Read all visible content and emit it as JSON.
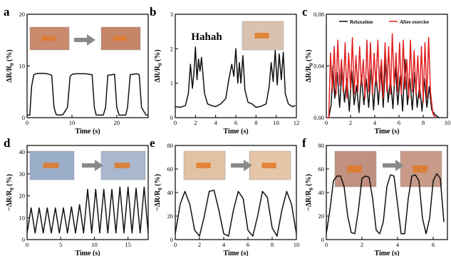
{
  "panel_labels": [
    "a",
    "b",
    "c",
    "d",
    "e",
    "f"
  ],
  "arrow_icon": "right-arrow-icon",
  "colors": {
    "black": "#111111",
    "red": "#e02020",
    "arrow": "#8a8a8a"
  },
  "chart_data": [
    {
      "id": "a",
      "type": "line",
      "xlabel": "Time (s)",
      "ylabel": "ΔR/R0 (%)",
      "xlim": [
        0,
        27
      ],
      "ylim": [
        0,
        20
      ],
      "xticks": [
        0,
        10,
        20
      ],
      "yticks": [
        0,
        10,
        20
      ],
      "series": [
        {
          "color": "#111111",
          "x": [
            0,
            0.6,
            1.0,
            1.5,
            2.0,
            3.0,
            4.5,
            5.5,
            6.0,
            6.5,
            7.0,
            7.3,
            8.0,
            9.0,
            9.6,
            10.1,
            11.0,
            13.0,
            14.5,
            15.0,
            15.4,
            16.1,
            17.0,
            17.5,
            18.0,
            19.5,
            20.0,
            20.5,
            21.2,
            22.0,
            22.4,
            23.0,
            24.5,
            25.0,
            25.5,
            26.5,
            27
          ],
          "y": [
            0.5,
            0.5,
            6,
            8.3,
            8.5,
            8.6,
            8.5,
            8.2,
            2,
            0.6,
            0.5,
            0.5,
            0.6,
            2,
            8,
            8.4,
            8.5,
            8.5,
            8.3,
            2,
            0.5,
            0.5,
            0.5,
            2,
            8.2,
            8.4,
            2,
            0.5,
            0.5,
            0.5,
            2,
            8.3,
            8.5,
            8.3,
            2,
            0.5,
            0.5
          ]
        }
      ],
      "images": [
        {
          "name": "forehead-sensor-relaxed-photo"
        },
        {
          "name": "forehead-sensor-frown-photo"
        }
      ]
    },
    {
      "id": "b",
      "type": "line",
      "xlabel": "Time (s)",
      "ylabel": "ΔR/R0 (%)",
      "xlim": [
        0,
        12
      ],
      "ylim": [
        0,
        3
      ],
      "xticks": [
        0,
        2,
        4,
        6,
        8,
        10,
        12
      ],
      "yticks": [
        0,
        1,
        2,
        3
      ],
      "annotation": "Hahah",
      "series": [
        {
          "color": "#111111",
          "x": [
            0,
            0.5,
            1.0,
            1.3,
            1.5,
            1.7,
            1.85,
            2.0,
            2.15,
            2.3,
            2.45,
            2.6,
            2.9,
            3.2,
            3.6,
            4.0,
            4.5,
            5.0,
            5.3,
            5.6,
            5.8,
            6.0,
            6.2,
            6.35,
            6.5,
            6.7,
            6.9,
            7.2,
            7.6,
            8.0,
            8.5,
            9.0,
            9.3,
            9.5,
            9.7,
            9.9,
            10.1,
            10.3,
            10.5,
            10.7,
            10.9,
            11.2,
            11.6,
            11.9
          ],
          "y": [
            0.32,
            0.3,
            0.35,
            0.7,
            1.55,
            0.85,
            1.3,
            2.05,
            1.1,
            1.7,
            1.35,
            1.75,
            0.7,
            0.4,
            0.35,
            0.32,
            0.4,
            0.55,
            1.1,
            1.55,
            1.2,
            2.0,
            1.0,
            1.6,
            1.0,
            1.8,
            0.8,
            0.45,
            0.4,
            0.3,
            0.33,
            0.4,
            0.9,
            1.6,
            1.05,
            1.95,
            0.95,
            1.85,
            1.1,
            1.9,
            0.7,
            0.4,
            0.32,
            0.35
          ]
        }
      ],
      "images": [
        {
          "name": "throat-sensor-photo"
        }
      ]
    },
    {
      "id": "c",
      "type": "line",
      "xlabel": "Time (s)",
      "ylabel": "ΔR/R0 (%)",
      "xlim": [
        0,
        10
      ],
      "ylim": [
        0,
        0.08
      ],
      "xticks": [
        0,
        2,
        4,
        6,
        8,
        10
      ],
      "yticks": [
        0.0,
        0.04,
        0.08
      ],
      "legend": [
        "Relaxation",
        "After exercise"
      ],
      "series": [
        {
          "name": "Relaxation",
          "color": "#111111",
          "x": [
            0,
            0.2,
            0.4,
            0.55,
            0.7,
            0.9,
            1.1,
            1.3,
            1.5,
            1.7,
            1.9,
            2.1,
            2.3,
            2.5,
            2.7,
            2.9,
            3.1,
            3.3,
            3.5,
            3.7,
            3.9,
            4.1,
            4.3,
            4.5,
            4.7,
            4.9,
            5.1,
            5.3,
            5.5,
            5.7,
            5.9,
            6.1,
            6.3,
            6.5,
            6.7,
            6.9,
            7.1,
            7.3,
            7.5,
            7.7,
            7.9,
            8.1,
            8.3,
            8.5,
            8.7,
            9.0,
            9.3
          ],
          "y": [
            0.0,
            0.0,
            0.01,
            0.04,
            0.015,
            0.035,
            0.008,
            0.038,
            0.012,
            0.03,
            0.005,
            0.036,
            0.01,
            0.025,
            0.004,
            0.033,
            0.01,
            0.03,
            0.008,
            0.038,
            0.006,
            0.034,
            0.01,
            0.04,
            0.008,
            0.047,
            0.012,
            0.03,
            0.007,
            0.04,
            0.01,
            0.032,
            0.005,
            0.045,
            0.01,
            0.03,
            0.006,
            0.035,
            0.008,
            0.025,
            0.005,
            0.03,
            0.008,
            0.024,
            0.006,
            0.002,
            0.0
          ]
        },
        {
          "name": "After exercise",
          "color": "#e02020",
          "x": [
            0,
            0.2,
            0.35,
            0.5,
            0.65,
            0.8,
            0.95,
            1.1,
            1.25,
            1.4,
            1.55,
            1.7,
            1.85,
            2.0,
            2.15,
            2.3,
            2.45,
            2.6,
            2.75,
            2.9,
            3.05,
            3.2,
            3.35,
            3.5,
            3.65,
            3.8,
            3.95,
            4.1,
            4.25,
            4.4,
            4.55,
            4.7,
            4.85,
            5.0,
            5.15,
            5.3,
            5.45,
            5.6,
            5.75,
            5.9,
            6.05,
            6.2,
            6.35,
            6.5,
            6.65,
            6.8,
            6.95,
            7.1,
            7.25,
            7.4,
            7.55,
            7.7,
            7.85,
            8.0,
            8.15,
            8.3,
            8.45,
            8.6,
            8.8,
            9.0
          ],
          "y": [
            0.0,
            0.0,
            0.05,
            0.02,
            0.055,
            0.018,
            0.06,
            0.025,
            0.045,
            0.02,
            0.058,
            0.015,
            0.05,
            0.022,
            0.062,
            0.018,
            0.048,
            0.02,
            0.055,
            0.025,
            0.045,
            0.015,
            0.06,
            0.02,
            0.058,
            0.018,
            0.05,
            0.025,
            0.06,
            0.02,
            0.045,
            0.015,
            0.058,
            0.02,
            0.055,
            0.018,
            0.065,
            0.025,
            0.05,
            0.02,
            0.058,
            0.018,
            0.06,
            0.022,
            0.045,
            0.015,
            0.06,
            0.02,
            0.052,
            0.018,
            0.048,
            0.015,
            0.055,
            0.012,
            0.058,
            0.015,
            0.062,
            0.02,
            0.003,
            0.0
          ]
        }
      ]
    },
    {
      "id": "d",
      "type": "line",
      "xlabel": "Time (s)",
      "ylabel": "−ΔR/R0 (%)",
      "xlim": [
        0,
        18
      ],
      "ylim": [
        0,
        43
      ],
      "xticks": [
        0,
        5,
        10,
        15
      ],
      "yticks": [
        0,
        10,
        20,
        30,
        40
      ],
      "series": [
        {
          "color": "#111111",
          "x": [
            0,
            0.6,
            1.2,
            1.8,
            2.4,
            3.0,
            3.6,
            4.2,
            4.8,
            5.4,
            6.0,
            6.6,
            7.2,
            7.8,
            8.4,
            9.0,
            9.6,
            10.2,
            10.8,
            11.4,
            12.0,
            12.6,
            13.2,
            13.8,
            14.4,
            15.0,
            15.6,
            16.2,
            16.8,
            17.4,
            18.0
          ],
          "y": [
            3,
            14.5,
            3,
            14.5,
            3,
            14.5,
            3,
            14.5,
            3,
            14.5,
            3,
            15,
            3,
            16,
            3,
            23,
            3,
            23,
            3,
            23,
            3,
            23,
            3,
            24,
            3,
            24,
            3,
            23.5,
            3,
            24,
            3
          ]
        }
      ],
      "images": [
        {
          "name": "wrist-flat-photo"
        },
        {
          "name": "wrist-bent-photo"
        }
      ]
    },
    {
      "id": "e",
      "type": "line",
      "xlabel": "Time (s)",
      "ylabel": "−ΔR/R0 (%)",
      "xlim": [
        0,
        10
      ],
      "ylim": [
        0,
        80
      ],
      "xticks": [
        0,
        2,
        4,
        6,
        8,
        10
      ],
      "yticks": [
        0,
        20,
        40,
        60,
        80
      ],
      "series": [
        {
          "color": "#111111",
          "x": [
            0,
            0.4,
            0.8,
            1.2,
            1.6,
            2.0,
            2.4,
            2.8,
            3.2,
            3.6,
            4.0,
            4.4,
            4.8,
            5.2,
            5.6,
            6.0,
            6.4,
            6.8,
            7.2,
            7.6,
            8.0,
            8.4,
            8.8,
            9.2,
            9.6,
            10.0
          ],
          "y": [
            5,
            30,
            41,
            30,
            8,
            3,
            20,
            41,
            42,
            25,
            5,
            3,
            25,
            41,
            35,
            8,
            3,
            20,
            41,
            36,
            10,
            3,
            25,
            41,
            30,
            5
          ]
        }
      ],
      "images": [
        {
          "name": "elbow-straight-photo"
        },
        {
          "name": "elbow-bent-photo"
        }
      ]
    },
    {
      "id": "f",
      "type": "line",
      "xlabel": "Time (s)",
      "ylabel": "−ΔR/R0 (%)",
      "xlim": [
        0,
        6.8
      ],
      "ylim": [
        0,
        80
      ],
      "xticks": [
        0,
        2,
        4,
        6
      ],
      "yticks": [
        0,
        20,
        40,
        60,
        80
      ],
      "series": [
        {
          "color": "#111111",
          "x": [
            0,
            0.2,
            0.4,
            0.6,
            0.8,
            1.0,
            1.2,
            1.4,
            1.6,
            1.8,
            2.0,
            2.2,
            2.4,
            2.6,
            2.8,
            3.0,
            3.2,
            3.4,
            3.6,
            3.8,
            4.0,
            4.2,
            4.4,
            4.6,
            4.8,
            5.0,
            5.2,
            5.4,
            5.6,
            5.8,
            6.0,
            6.2,
            6.4,
            6.6
          ],
          "y": [
            5,
            25,
            50,
            54,
            54,
            45,
            20,
            6,
            5,
            25,
            52,
            54,
            53,
            35,
            8,
            5,
            15,
            45,
            55,
            54,
            30,
            5,
            5,
            35,
            54,
            55,
            50,
            18,
            5,
            18,
            50,
            56,
            52,
            15
          ]
        }
      ],
      "images": [
        {
          "name": "knee-straight-photo"
        },
        {
          "name": "knee-bent-photo"
        }
      ]
    }
  ]
}
